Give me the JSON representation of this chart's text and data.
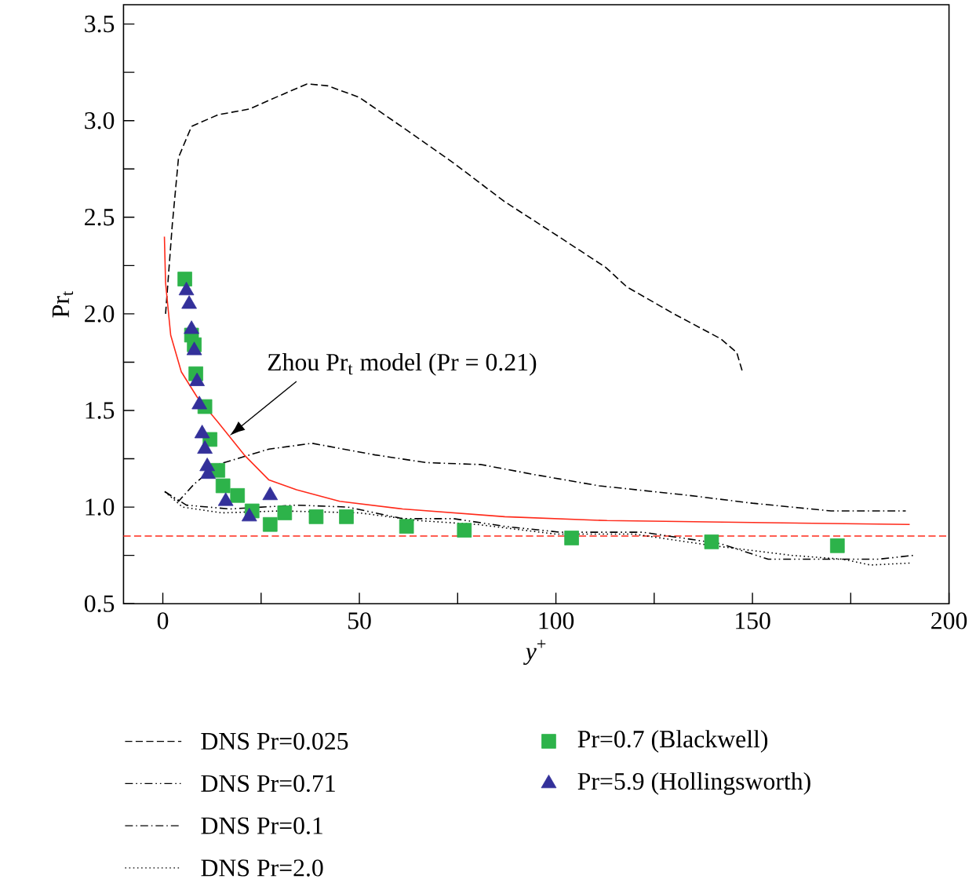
{
  "chart_data": {
    "type": "line",
    "xlabel": "*y*$^{+}$",
    "ylabel": "Pr$_{t}$",
    "xlim": [
      -10,
      200
    ],
    "ylim": [
      0.5,
      3.6
    ],
    "xticks": [
      {
        "value": 0,
        "label": "0"
      },
      {
        "value": 25,
        "label": null
      },
      {
        "value": 50,
        "label": "50"
      },
      {
        "value": 75,
        "label": null
      },
      {
        "value": 100,
        "label": "100"
      },
      {
        "value": 125,
        "label": null
      },
      {
        "value": 150,
        "label": "150"
      },
      {
        "value": 175,
        "label": null
      },
      {
        "value": 200,
        "label": "200"
      }
    ],
    "yticks": [
      {
        "value": 0.5,
        "label": "0.5"
      },
      {
        "value": 0.75,
        "label": null
      },
      {
        "value": 1.0,
        "label": "1.0"
      },
      {
        "value": 1.25,
        "label": null
      },
      {
        "value": 1.5,
        "label": "1.5"
      },
      {
        "value": 1.75,
        "label": null
      },
      {
        "value": 2.0,
        "label": "2.0"
      },
      {
        "value": 2.25,
        "label": null
      },
      {
        "value": 2.5,
        "label": "2.5"
      },
      {
        "value": 2.75,
        "label": null
      },
      {
        "value": 3.0,
        "label": "3.0"
      },
      {
        "value": 3.25,
        "label": null
      },
      {
        "value": 3.5,
        "label": "3.5"
      }
    ],
    "legend": "bottom",
    "ref_lines": [
      {
        "axis": "y",
        "value": 0.85,
        "color": "#ff2a1a",
        "line_style": "dashed"
      }
    ],
    "annotations": [
      {
        "text": "Zhou Pr$_{t}$ model (Pr = 0.21)",
        "x": 17,
        "y": 1.37
      }
    ],
    "series": [
      {
        "name": "DNS Pr=0.025",
        "color": "#000000",
        "line_style": "dashed",
        "marker": "none",
        "x": [
          0.7,
          2.4,
          4,
          7.3,
          14,
          22,
          28.7,
          36.7,
          42,
          50,
          60.7,
          74,
          87,
          100.7,
          112.7,
          118,
          130,
          142,
          146,
          147.6
        ],
        "values": [
          2.0,
          2.46,
          2.81,
          2.97,
          3.03,
          3.06,
          3.12,
          3.19,
          3.18,
          3.12,
          2.97,
          2.78,
          2.58,
          2.4,
          2.24,
          2.14,
          2.0,
          1.87,
          1.8,
          1.69
        ]
      },
      {
        "name": "DNS Pr=0.71",
        "color": "#000000",
        "line_style": "dashdotdot",
        "marker": "none",
        "x": [
          0.5,
          6,
          17,
          34,
          47,
          61,
          74,
          87,
          101,
          122,
          142,
          154,
          182,
          191
        ],
        "values": [
          1.08,
          1.01,
          0.99,
          1.01,
          1.0,
          0.94,
          0.94,
          0.9,
          0.87,
          0.87,
          0.81,
          0.73,
          0.73,
          0.75
        ]
      },
      {
        "name": "DNS Pr=0.1",
        "color": "#000000",
        "line_style": "dashdot",
        "marker": "none",
        "x": [
          0.5,
          4,
          8,
          14,
          27,
          38,
          54,
          67,
          81,
          94,
          111,
          134,
          150,
          170,
          189
        ],
        "values": [
          1.08,
          1.03,
          1.12,
          1.22,
          1.3,
          1.33,
          1.27,
          1.23,
          1.22,
          1.17,
          1.11,
          1.06,
          1.02,
          0.98,
          0.98
        ]
      },
      {
        "name": "DNS Pr=2.0",
        "color": "#000000",
        "line_style": "dotted",
        "marker": "none",
        "x": [
          0.5,
          5,
          15,
          30,
          50,
          65,
          80,
          100,
          120,
          140,
          160,
          173,
          180,
          190
        ],
        "values": [
          1.08,
          1.0,
          0.97,
          0.98,
          0.97,
          0.93,
          0.91,
          0.86,
          0.86,
          0.8,
          0.75,
          0.73,
          0.7,
          0.71
        ]
      },
      {
        "color": "#ff2a1a",
        "line_style": "solid",
        "marker": "none",
        "x": [
          0.4,
          0.7,
          2,
          4.7,
          8.7,
          14,
          20.7,
          27,
          34,
          45,
          61,
          87,
          113,
          150,
          190
        ],
        "values": [
          2.4,
          2.16,
          1.89,
          1.7,
          1.57,
          1.44,
          1.27,
          1.14,
          1.09,
          1.03,
          0.99,
          0.95,
          0.93,
          0.92,
          0.91
        ]
      },
      {
        "name": "Pr=0.7 (Blackwell)",
        "type": "scatter",
        "color": "#2db34a",
        "marker": "square",
        "x": [
          5.6,
          7.3,
          8,
          8.4,
          10.7,
          12,
          14,
          15.3,
          19,
          22.7,
          27.3,
          31,
          39,
          46.7,
          62,
          76.7,
          104,
          139.6,
          171.6
        ],
        "values": [
          2.18,
          1.89,
          1.84,
          1.69,
          1.52,
          1.35,
          1.19,
          1.11,
          1.06,
          0.98,
          0.91,
          0.97,
          0.95,
          0.95,
          0.9,
          0.88,
          0.84,
          0.82,
          0.8
        ]
      },
      {
        "name": "Pr=5.9 (Hollingsworth)",
        "type": "scatter",
        "color": "#33309a",
        "marker": "triangle",
        "x": [
          6,
          6.7,
          7.3,
          8,
          8.7,
          9.3,
          10,
          10.7,
          11.3,
          11.5,
          16,
          22,
          27.3
        ],
        "values": [
          2.12,
          2.05,
          1.92,
          1.81,
          1.65,
          1.53,
          1.38,
          1.3,
          1.21,
          1.17,
          1.03,
          0.95,
          1.06
        ]
      }
    ]
  }
}
